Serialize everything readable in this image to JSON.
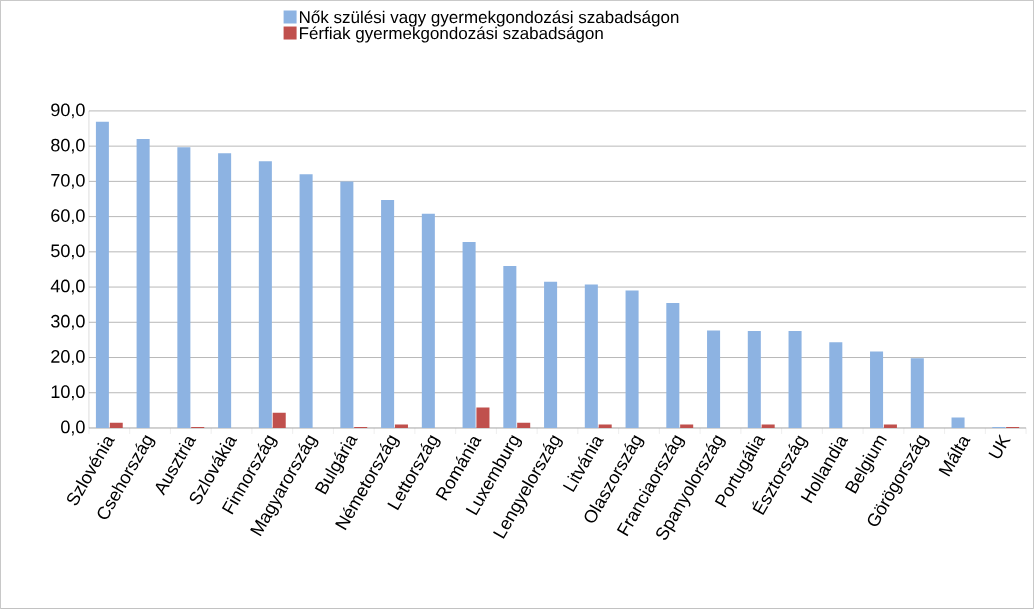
{
  "chart_data": {
    "type": "bar",
    "categories": [
      "Szlovénia",
      "Csehország",
      "Ausztria",
      "Szlovákia",
      "Finnország",
      "Magyarország",
      "Bulgária",
      "Németország",
      "Lettország",
      "Románia",
      "Luxemburg",
      "Lengyelország",
      "Litvánia",
      "Olaszország",
      "Franciaország",
      "Spanyolország",
      "Portugália",
      "Észtország",
      "Hollandia",
      "Belgium",
      "Görögország",
      "Málta",
      "UK"
    ],
    "series": [
      {
        "name": "Nők szülési vagy gyermekgondozási szabadságon",
        "color": "#8db3e2",
        "values": [
          87.0,
          82.0,
          79.7,
          78.0,
          75.7,
          72.0,
          70.0,
          64.7,
          60.8,
          52.8,
          46.0,
          41.5,
          40.7,
          39.0,
          35.5,
          27.7,
          27.5,
          27.5,
          24.3,
          21.7,
          19.8,
          3.0,
          0.3
        ]
      },
      {
        "name": "Férfiak gyermekgondozási szabadságon",
        "color": "#c0504d",
        "values": [
          1.5,
          0,
          0.3,
          0,
          4.3,
          0,
          0.3,
          1.0,
          0,
          5.8,
          1.5,
          0,
          1.0,
          0,
          1.0,
          0,
          1.0,
          0,
          0,
          1.0,
          0,
          0,
          0.3
        ]
      }
    ],
    "ylim": [
      0,
      90
    ],
    "yticks": [
      {
        "value": 0,
        "label": "0,0"
      },
      {
        "value": 10,
        "label": "10,0"
      },
      {
        "value": 20,
        "label": "20,0"
      },
      {
        "value": 30,
        "label": "30,0"
      },
      {
        "value": 40,
        "label": "40,0"
      },
      {
        "value": 50,
        "label": "50,0"
      },
      {
        "value": 60,
        "label": "60,0"
      },
      {
        "value": 70,
        "label": "70,0"
      },
      {
        "value": 80,
        "label": "80,0"
      },
      {
        "value": 90,
        "label": "90,0"
      }
    ],
    "grid": "y",
    "legend": "top"
  }
}
